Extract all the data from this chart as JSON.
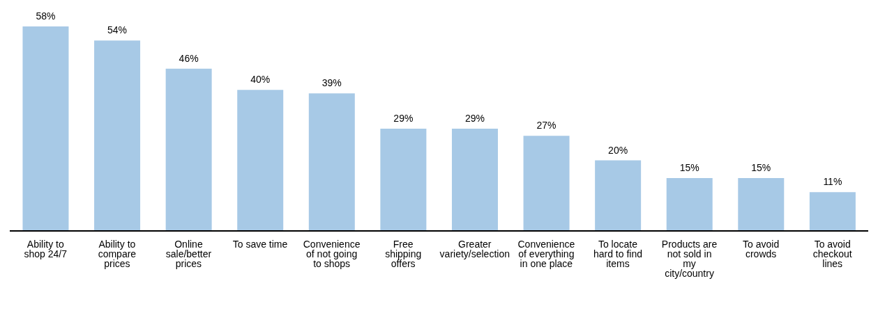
{
  "chart_data": {
    "type": "bar",
    "categories": [
      "Ability to shop 24/7",
      "Ability to compare prices",
      "Online sale/better prices",
      "To save time",
      "Convenience of not going to shops",
      "Free shipping offers",
      "Greater variety/selection",
      "Convenience of everything in one place",
      "To locate hard to find items",
      "Products are not sold in my city/country",
      "To avoid crowds",
      "To avoid checkout lines"
    ],
    "values": [
      58,
      54,
      46,
      40,
      39,
      29,
      29,
      27,
      20,
      15,
      15,
      11
    ],
    "value_labels": [
      "58%",
      "54%",
      "46%",
      "40%",
      "39%",
      "29%",
      "29%",
      "27%",
      "20%",
      "15%",
      "15%",
      "11%"
    ],
    "color": "#a7c9e6",
    "grid": false,
    "legend": false
  }
}
